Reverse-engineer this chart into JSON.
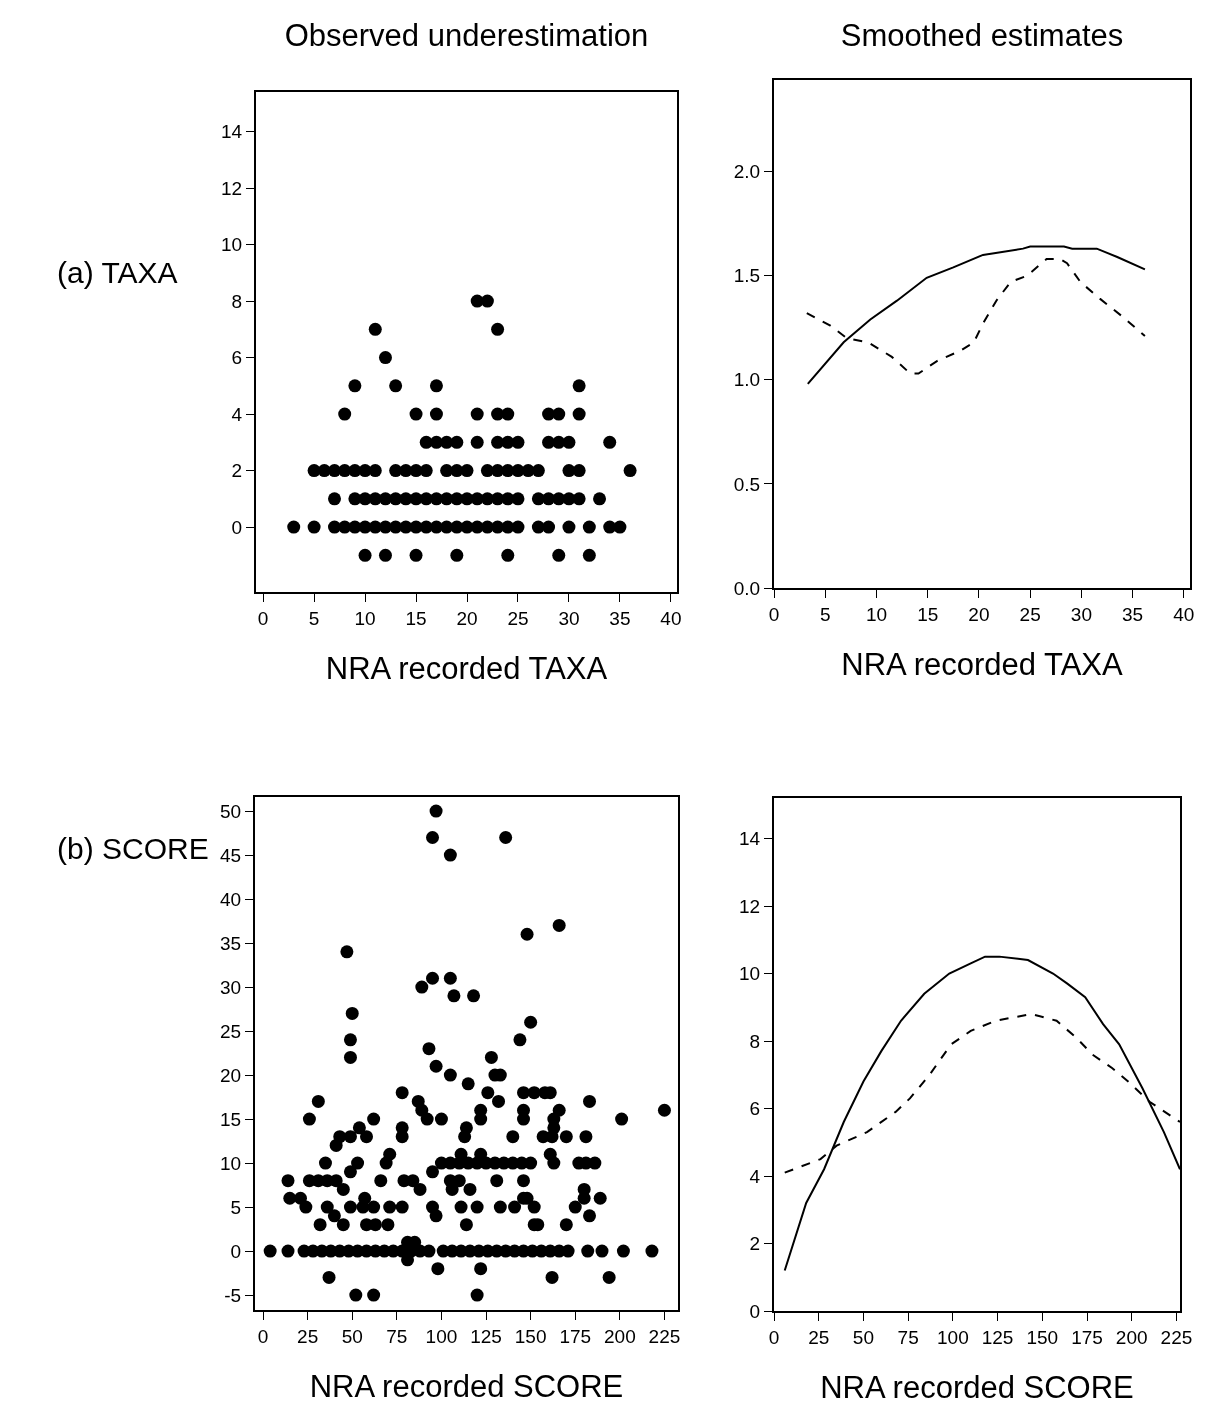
{
  "chart_data": [
    {
      "type": "scatter",
      "title": "Observed underestimation",
      "xlabel": "NRA recorded TAXA",
      "annotations": [
        "(a) TAXA"
      ],
      "color": "#000000",
      "marker": "circle",
      "xlim": [
        -0.7,
        40.6
      ],
      "xticks": [
        0,
        5,
        10,
        15,
        20,
        25,
        30,
        35,
        40
      ],
      "ylim": [
        -2.3,
        15.4
      ],
      "yticks": [
        0,
        2,
        4,
        6,
        8,
        10,
        12,
        14
      ],
      "x": [
        21,
        22,
        11,
        23,
        12,
        9,
        13,
        17,
        31,
        8,
        15,
        17,
        21,
        23,
        24,
        28,
        29,
        31,
        16,
        17,
        18,
        19,
        21,
        23,
        24,
        25,
        28,
        29,
        30,
        34,
        5,
        6,
        7,
        8,
        9,
        10,
        11,
        13,
        14,
        15,
        16,
        18,
        19,
        20,
        22,
        23,
        24,
        25,
        26,
        27,
        30,
        31,
        36,
        7,
        9,
        10,
        11,
        12,
        13,
        14,
        15,
        16,
        17,
        18,
        19,
        20,
        21,
        22,
        23,
        24,
        25,
        27,
        28,
        29,
        30,
        31,
        33,
        3,
        5,
        7,
        8,
        9,
        10,
        11,
        12,
        13,
        14,
        15,
        16,
        17,
        18,
        19,
        20,
        21,
        22,
        23,
        24,
        25,
        27,
        28,
        30,
        32,
        34,
        35,
        10,
        12,
        15,
        19,
        24,
        29,
        32
      ],
      "values": [
        8,
        8,
        7,
        7,
        6,
        5,
        5,
        5,
        5,
        4,
        4,
        4,
        4,
        4,
        4,
        4,
        4,
        4,
        3,
        3,
        3,
        3,
        3,
        3,
        3,
        3,
        3,
        3,
        3,
        3,
        2,
        2,
        2,
        2,
        2,
        2,
        2,
        2,
        2,
        2,
        2,
        2,
        2,
        2,
        2,
        2,
        2,
        2,
        2,
        2,
        2,
        2,
        2,
        1,
        1,
        1,
        1,
        1,
        1,
        1,
        1,
        1,
        1,
        1,
        1,
        1,
        1,
        1,
        1,
        1,
        1,
        1,
        1,
        1,
        1,
        1,
        1,
        0,
        0,
        0,
        0,
        0,
        0,
        0,
        0,
        0,
        0,
        0,
        0,
        0,
        0,
        0,
        0,
        0,
        0,
        0,
        0,
        0,
        0,
        0,
        0,
        0,
        0,
        0,
        -1,
        -1,
        -1,
        -1,
        -1,
        -1,
        -1
      ]
    },
    {
      "type": "line",
      "title": "Smoothed estimates",
      "xlabel": "NRA recorded TAXA",
      "xlim": [
        0,
        40.6
      ],
      "xticks": [
        0,
        5,
        10,
        15,
        20,
        25,
        30,
        35,
        40
      ],
      "ylim": [
        0,
        2.44
      ],
      "yticks": [
        {
          "value": 0,
          "label": "0.0"
        },
        {
          "value": 0.5,
          "label": "0.5"
        },
        {
          "value": 1,
          "label": "1.0"
        },
        {
          "value": 1.5,
          "label": "1.5"
        },
        {
          "value": 2,
          "label": "2.0"
        }
      ],
      "series": [
        {
          "color": "#000000",
          "line_style": "solid",
          "x": [
            3.3,
            6.8,
            9.4,
            12,
            14.9,
            17.5,
            20.4,
            24.3,
            25,
            28.3,
            29.1,
            31.5,
            33.5,
            36.2
          ],
          "values": [
            0.98,
            1.18,
            1.29,
            1.38,
            1.49,
            1.54,
            1.6,
            1.63,
            1.64,
            1.64,
            1.63,
            1.63,
            1.59,
            1.53
          ]
        },
        {
          "color": "#000000",
          "line_style": "dashed",
          "x": [
            3.2,
            5.5,
            7.1,
            9.2,
            11.5,
            13.3,
            14.1,
            15.9,
            18.2,
            19.5,
            20.4,
            21.7,
            23.1,
            24.7,
            26.6,
            27.9,
            28.6,
            29.9,
            31.8,
            34.1,
            36.2
          ],
          "values": [
            1.32,
            1.26,
            1.2,
            1.18,
            1.11,
            1.03,
            1.03,
            1.09,
            1.14,
            1.18,
            1.27,
            1.38,
            1.47,
            1.5,
            1.58,
            1.58,
            1.56,
            1.47,
            1.39,
            1.3,
            1.21
          ]
        }
      ]
    },
    {
      "type": "scatter",
      "xlabel": "NRA recorded SCORE",
      "annotations": [
        "(b) SCORE"
      ],
      "color": "#000000",
      "marker": "circle",
      "xlim": [
        -4.5,
        232.6
      ],
      "xticks": [
        0,
        25,
        50,
        75,
        100,
        125,
        150,
        175,
        200,
        225
      ],
      "ylim": [
        -6.7,
        51.6
      ],
      "yticks": [
        -5,
        0,
        5,
        10,
        15,
        20,
        25,
        30,
        35,
        40,
        45,
        50
      ],
      "x": [
        97,
        95,
        136,
        105,
        166,
        148,
        47,
        95,
        105,
        89,
        107,
        118,
        50,
        150,
        49,
        144,
        93,
        49,
        128,
        97,
        105,
        115,
        130,
        133,
        78,
        87,
        89,
        92,
        100,
        31,
        26,
        126,
        132,
        122,
        122,
        146,
        152,
        158,
        161,
        146,
        146,
        183,
        166,
        163,
        201,
        225,
        62,
        54,
        58,
        43,
        49,
        41,
        78,
        78,
        114,
        113,
        140,
        157,
        162,
        170,
        181,
        163,
        35,
        53,
        49,
        71,
        69,
        100,
        105,
        110,
        115,
        120,
        125,
        130,
        135,
        140,
        145,
        150,
        111,
        122,
        161,
        163,
        177,
        181,
        186,
        95,
        105,
        110,
        106,
        116,
        131,
        146,
        146,
        14,
        26,
        31,
        36,
        41,
        45,
        66,
        79,
        84,
        88,
        15,
        21,
        24,
        36,
        40,
        49,
        57,
        56,
        62,
        71,
        78,
        95,
        97,
        111,
        120,
        133,
        141,
        148,
        152,
        175,
        180,
        180,
        183,
        189,
        32,
        45,
        58,
        63,
        70,
        114,
        152,
        154,
        170,
        4,
        14,
        23,
        28,
        33,
        38,
        43,
        48,
        53,
        58,
        63,
        68,
        73,
        78,
        83,
        88,
        93,
        101,
        106,
        111,
        116,
        121,
        126,
        131,
        136,
        141,
        146,
        151,
        156,
        161,
        166,
        171,
        182,
        190,
        202,
        218,
        81,
        81,
        85,
        37,
        98,
        122,
        162,
        194,
        52,
        62,
        120
      ],
      "values": [
        50,
        47,
        47,
        45,
        37,
        36,
        34,
        31,
        31,
        30,
        29,
        29,
        27,
        26,
        24,
        24,
        23,
        22,
        22,
        21,
        20,
        19,
        20,
        20,
        18,
        17,
        16,
        15,
        15,
        17,
        15,
        18,
        17,
        16,
        15,
        18,
        18,
        18,
        18,
        16,
        15,
        17,
        16,
        15,
        15,
        16,
        15,
        14,
        13,
        13,
        13,
        12,
        14,
        13,
        14,
        13,
        13,
        13,
        13,
        13,
        13,
        14,
        10,
        10,
        9,
        11,
        10,
        10,
        10,
        10,
        10,
        10,
        10,
        10,
        10,
        10,
        10,
        10,
        11,
        11,
        11,
        10,
        10,
        10,
        10,
        9,
        8,
        8,
        7,
        7,
        8,
        8,
        6,
        8,
        8,
        8,
        8,
        8,
        7,
        8,
        8,
        8,
        7,
        6,
        6,
        5,
        5,
        4,
        5,
        6,
        5,
        5,
        5,
        5,
        5,
        4,
        5,
        5,
        5,
        5,
        6,
        5,
        5,
        7,
        6,
        4,
        6,
        3,
        3,
        3,
        3,
        3,
        3,
        3,
        3,
        3,
        0,
        0,
        0,
        0,
        0,
        0,
        0,
        0,
        0,
        0,
        0,
        0,
        0,
        0,
        0,
        0,
        0,
        0,
        0,
        0,
        0,
        0,
        0,
        0,
        0,
        0,
        0,
        0,
        0,
        0,
        0,
        0,
        0,
        0,
        0,
        0,
        1,
        -1,
        1,
        -3,
        -2,
        -2,
        -3,
        -3,
        -5,
        -5,
        -5
      ]
    },
    {
      "type": "line",
      "xlabel": "NRA recorded SCORE",
      "xlim": [
        0,
        227
      ],
      "xticks": [
        0,
        25,
        50,
        75,
        100,
        125,
        150,
        175,
        200,
        225
      ],
      "ylim": [
        0,
        15.2
      ],
      "yticks": [
        0,
        2,
        4,
        6,
        8,
        10,
        12,
        14
      ],
      "series": [
        {
          "color": "#000000",
          "line_style": "solid",
          "x": [
            6,
            18,
            28,
            39,
            50,
            60,
            71,
            84,
            98,
            110,
            118,
            126,
            142,
            156,
            164,
            174,
            184,
            193,
            206,
            218,
            227
          ],
          "values": [
            1.2,
            3.2,
            4.2,
            5.6,
            6.8,
            7.7,
            8.6,
            9.4,
            10,
            10.3,
            10.5,
            10.5,
            10.4,
            10,
            9.7,
            9.3,
            8.5,
            7.9,
            6.6,
            5.3,
            4.2
          ]
        },
        {
          "color": "#000000",
          "line_style": "dashed",
          "x": [
            6,
            26,
            35,
            52,
            68,
            76,
            87,
            99,
            110,
            124,
            144,
            158,
            169,
            178,
            189,
            198,
            210,
            227
          ],
          "values": [
            4.1,
            4.5,
            4.9,
            5.3,
            5.9,
            6.3,
            7,
            7.9,
            8.3,
            8.6,
            8.8,
            8.6,
            8.1,
            7.6,
            7.2,
            6.8,
            6.2,
            5.6
          ]
        }
      ]
    }
  ]
}
